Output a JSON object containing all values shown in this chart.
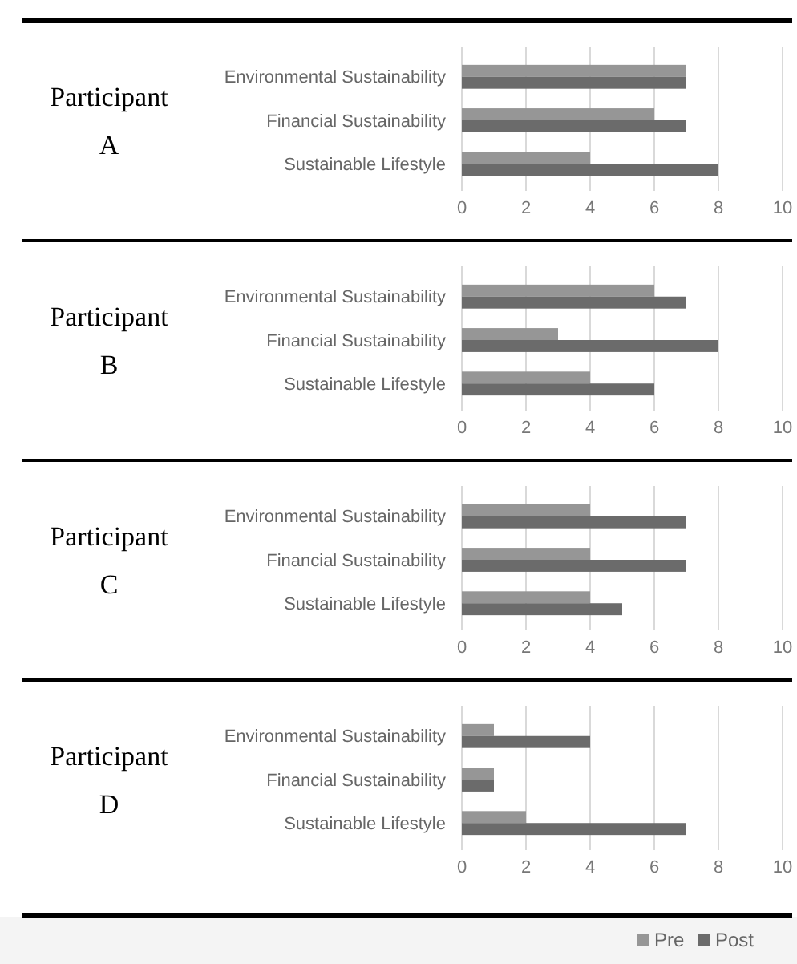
{
  "chart_data": [
    {
      "type": "bar",
      "orientation": "horizontal",
      "title": "Participant A",
      "categories": [
        "Environmental Sustainability",
        "Financial Sustainability",
        "Sustainable Lifestyle"
      ],
      "series": [
        {
          "color": "#969696",
          "values": [
            7,
            6,
            4
          ]
        },
        {
          "color": "#6b6b6b",
          "values": [
            7,
            7,
            8
          ]
        }
      ],
      "xlim": [
        0,
        10
      ],
      "xticks": [
        0,
        2,
        4,
        6,
        8,
        10
      ],
      "grid": "x",
      "legend": false
    },
    {
      "type": "bar",
      "orientation": "horizontal",
      "title": "Participant B",
      "categories": [
        "Environmental Sustainability",
        "Financial Sustainability",
        "Sustainable Lifestyle"
      ],
      "series": [
        {
          "color": "#969696",
          "values": [
            6,
            3,
            4
          ]
        },
        {
          "color": "#6b6b6b",
          "values": [
            7,
            8,
            6
          ]
        }
      ],
      "xlim": [
        0,
        10
      ],
      "xticks": [
        0,
        2,
        4,
        6,
        8,
        10
      ],
      "grid": "x",
      "legend": false
    },
    {
      "type": "bar",
      "orientation": "horizontal",
      "title": "Participant C",
      "categories": [
        "Environmental Sustainability",
        "Financial Sustainability",
        "Sustainable Lifestyle"
      ],
      "series": [
        {
          "color": "#969696",
          "values": [
            4,
            4,
            4
          ]
        },
        {
          "color": "#6b6b6b",
          "values": [
            7,
            7,
            5
          ]
        }
      ],
      "xlim": [
        0,
        10
      ],
      "xticks": [
        0,
        2,
        4,
        6,
        8,
        10
      ],
      "grid": "x",
      "legend": false
    },
    {
      "type": "bar",
      "orientation": "horizontal",
      "title": "Participant D",
      "categories": [
        "Environmental Sustainability",
        "Financial Sustainability",
        "Sustainable Lifestyle"
      ],
      "series": [
        {
          "name": "Pre",
          "color": "#969696",
          "values": [
            1,
            1,
            2
          ]
        },
        {
          "name": "Post",
          "color": "#6b6b6b",
          "values": [
            4,
            1,
            7
          ]
        }
      ],
      "xlim": [
        0,
        10
      ],
      "xticks": [
        0,
        2,
        4,
        6,
        8,
        10
      ],
      "grid": "x",
      "legend": "bottom right"
    }
  ]
}
